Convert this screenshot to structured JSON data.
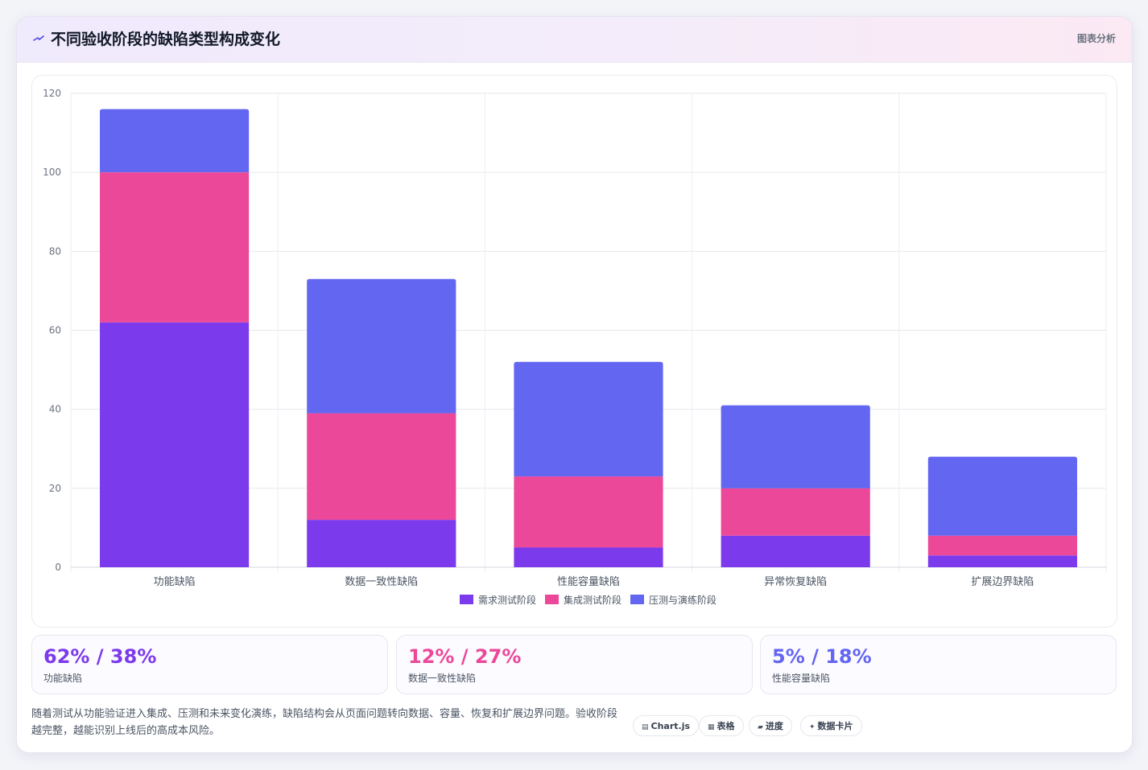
{
  "header": {
    "title": "不同验收阶段的缺陷类型构成变化",
    "tag": "图表分析",
    "icon": "sparkle-icon"
  },
  "chart_data": {
    "type": "bar",
    "stacked": true,
    "categories": [
      "功能缺陷",
      "数据一致性缺陷",
      "性能容量缺陷",
      "异常恢复缺陷",
      "扩展边界缺陷"
    ],
    "series": [
      {
        "name": "需求测试阶段",
        "color": "#7c3aed",
        "values": [
          62,
          12,
          5,
          8,
          3
        ]
      },
      {
        "name": "集成测试阶段",
        "color": "#ec4899",
        "values": [
          38,
          27,
          18,
          12,
          5
        ]
      },
      {
        "name": "压测与演练阶段",
        "color": "#6366f1",
        "values": [
          16,
          34,
          29,
          21,
          20
        ]
      }
    ],
    "ylim": [
      0,
      120
    ],
    "yticks": [
      0,
      20,
      40,
      60,
      80,
      100,
      120
    ],
    "grid": true,
    "legend": "bottom"
  },
  "stats": [
    {
      "value": "62% / 38%",
      "label": "功能缺陷",
      "color": "#7c3aed"
    },
    {
      "value": "12% / 27%",
      "label": "数据一致性缺陷",
      "color": "#ec4899"
    },
    {
      "value": "5% / 18%",
      "label": "性能容量缺陷",
      "color": "#6366f1"
    }
  ],
  "footer": {
    "text": "随着测试从功能验证进入集成、压测和未来变化演练，缺陷结构会从页面问题转向数据、容量、恢复和扩展边界问题。验收阶段越完整，越能识别上线后的高成本风险。",
    "pills": [
      {
        "label": "Chart.js",
        "glyph": "▤"
      },
      {
        "label": "表格",
        "glyph": "▦"
      },
      {
        "label": "进度",
        "glyph": "▰"
      },
      {
        "label": "数据卡片",
        "glyph": "✦"
      }
    ]
  }
}
